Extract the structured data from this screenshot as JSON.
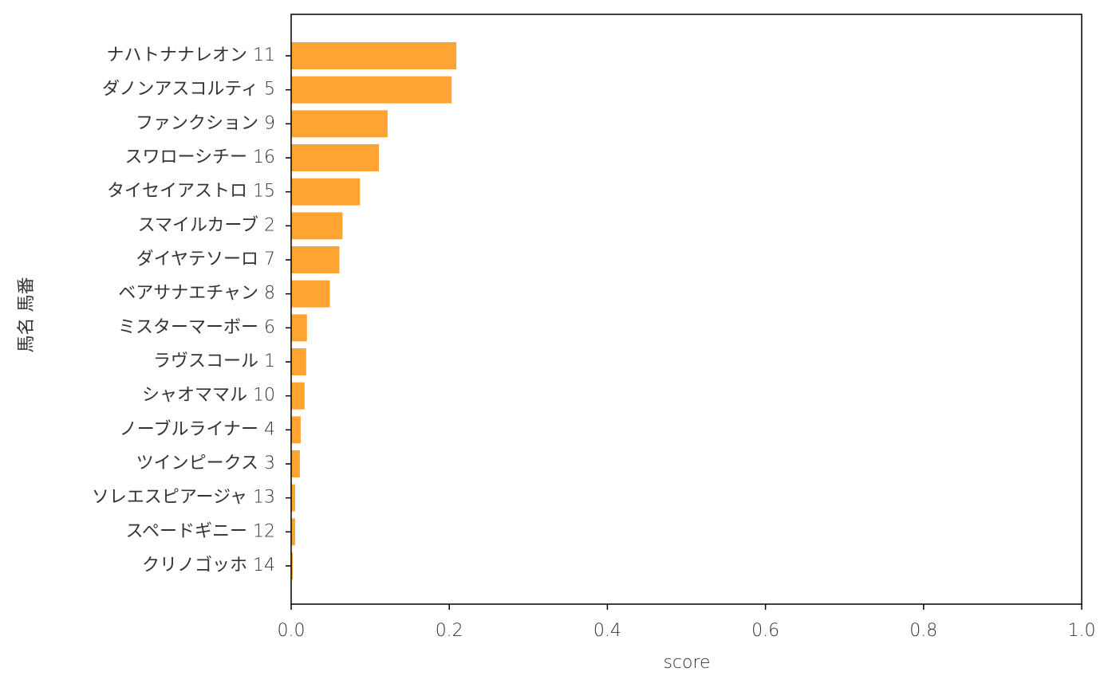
{
  "chart_data": {
    "type": "barh",
    "x_label": "score",
    "y_label": "馬名 馬番",
    "color": "#ffa333",
    "categories": [
      "ナハトナナレオン 11",
      "ダノンアスコルティ 5",
      "ファンクション 9",
      "スワローシチー 16",
      "タイセイアストロ 15",
      "スマイルカーブ 2",
      "ダイヤテソーロ 7",
      "ベアサナエチャン 8",
      "ミスターマーボー 6",
      "ラヴスコール 1",
      "シャオママル 10",
      "ノーブルライナー 4",
      "ツインピークス 3",
      "ソレエスピアージャ 13",
      "スペードギニー 12",
      "クリノゴッホ 14"
    ],
    "values": [
      0.209,
      0.203,
      0.122,
      0.111,
      0.087,
      0.065,
      0.061,
      0.049,
      0.02,
      0.019,
      0.017,
      0.012,
      0.011,
      0.005,
      0.005,
      0.002
    ],
    "xlim": [
      0,
      1
    ],
    "xticks": [
      {
        "value": 0,
        "label": "0.0"
      },
      0.2,
      0.4,
      0.6,
      0.8,
      {
        "value": 1,
        "label": "1.0"
      }
    ]
  }
}
